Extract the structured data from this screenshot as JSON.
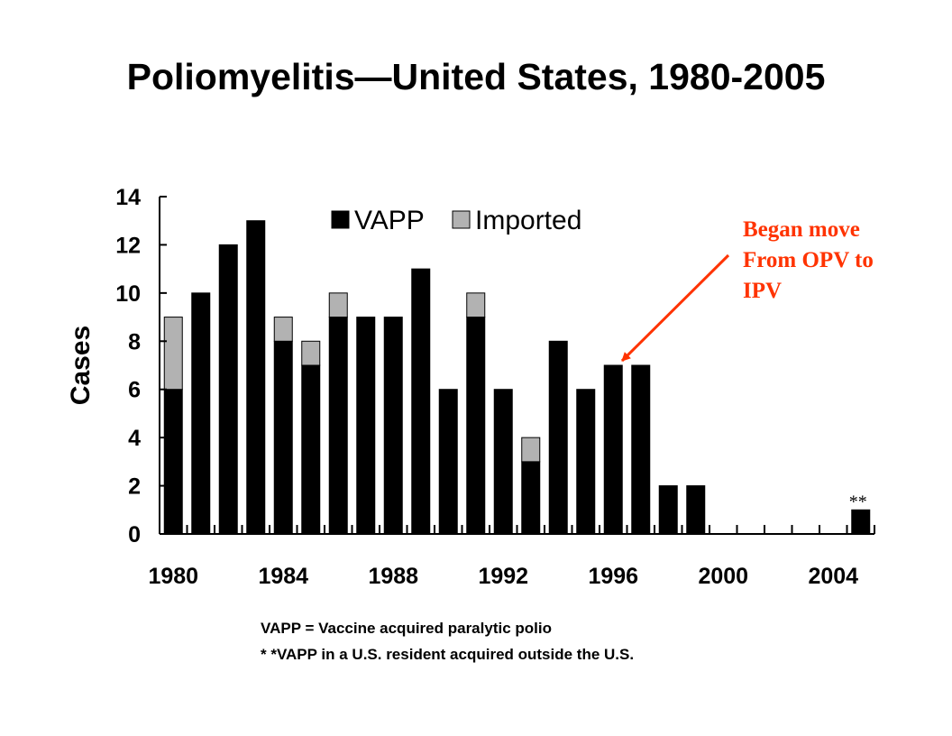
{
  "chart_data": {
    "type": "bar",
    "stacked": true,
    "title": "Poliomyelitis—United States, 1980-2005",
    "ylabel": "Cases",
    "xlabel": "",
    "ylim": [
      0,
      14
    ],
    "yticks": [
      0,
      2,
      4,
      6,
      8,
      10,
      12,
      14
    ],
    "xticks": [
      1980,
      1984,
      1988,
      1992,
      1996,
      2000,
      2004
    ],
    "grid": false,
    "legend_position": "top",
    "categories": [
      1980,
      1981,
      1982,
      1983,
      1984,
      1985,
      1986,
      1987,
      1988,
      1989,
      1990,
      1991,
      1992,
      1993,
      1994,
      1995,
      1996,
      1997,
      1998,
      1999,
      2000,
      2001,
      2002,
      2003,
      2004,
      2005
    ],
    "series": [
      {
        "name": "VAPP",
        "color": "#000000",
        "values": [
          6,
          10,
          12,
          13,
          8,
          7,
          9,
          9,
          9,
          11,
          6,
          9,
          6,
          3,
          8,
          6,
          7,
          7,
          2,
          2,
          0,
          0,
          0,
          0,
          0,
          1
        ]
      },
      {
        "name": "Imported",
        "color": "#b2b2b2",
        "values": [
          3,
          0,
          0,
          0,
          1,
          1,
          1,
          0,
          0,
          0,
          0,
          1,
          0,
          1,
          0,
          0,
          0,
          0,
          0,
          0,
          0,
          0,
          0,
          0,
          0,
          0
        ]
      }
    ],
    "bar_marker": {
      "category": 2005,
      "text": "**"
    },
    "annotation": {
      "lines": [
        "Began move",
        "From OPV to",
        "IPV"
      ],
      "points_to": 1996,
      "color": "#ff3300"
    }
  },
  "footnotes": [
    "VAPP = Vaccine acquired paralytic polio",
    "* *VAPP in a U.S. resident acquired outside the U.S."
  ]
}
